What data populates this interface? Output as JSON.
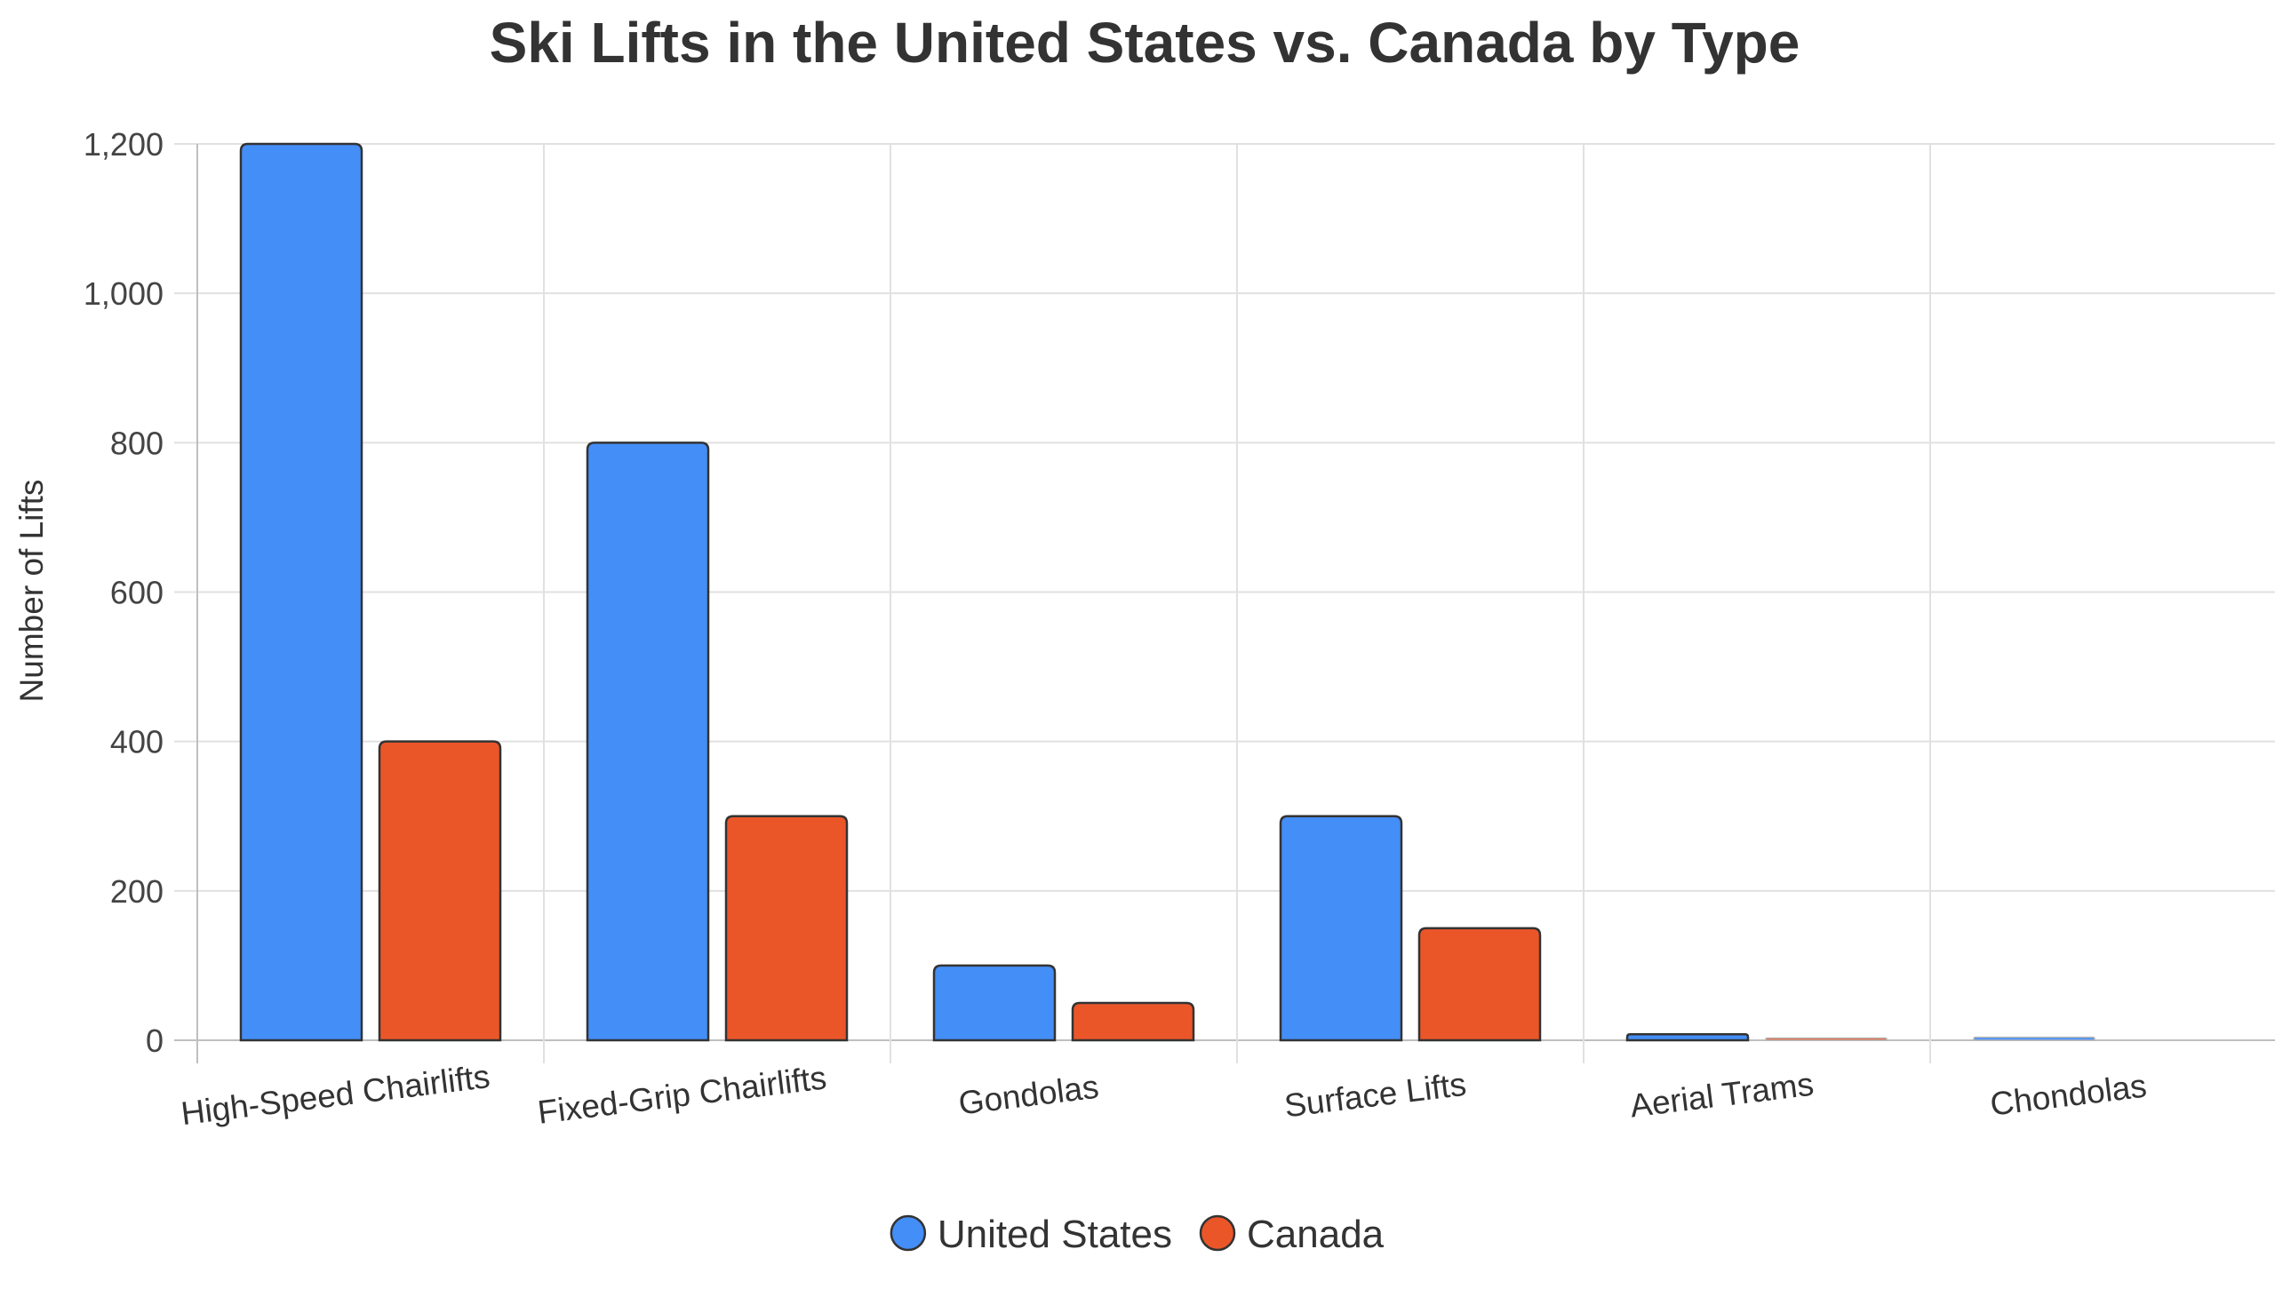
{
  "chart_data": {
    "type": "bar",
    "title": "Ski Lifts in the United States vs. Canada by Type",
    "xlabel": "",
    "ylabel": "Number of Lifts",
    "categories": [
      "High-Speed Chairlifts",
      "Fixed-Grip Chairlifts",
      "Gondolas",
      "Surface Lifts",
      "Aerial Trams",
      "Chondolas"
    ],
    "series": [
      {
        "name": "United States",
        "color": "#448ef7",
        "values": [
          1200,
          800,
          100,
          300,
          8,
          4
        ]
      },
      {
        "name": "Canada",
        "color": "#eb5629",
        "values": [
          400,
          300,
          50,
          150,
          3,
          0
        ]
      }
    ],
    "ylim": [
      0,
      1200
    ],
    "yticks": [
      0,
      200,
      400,
      600,
      800,
      1000,
      1200
    ],
    "ytick_labels": [
      "0",
      "200",
      "400",
      "600",
      "800",
      "1,000",
      "1,200"
    ],
    "grid": true,
    "legend_position": "bottom-center"
  }
}
